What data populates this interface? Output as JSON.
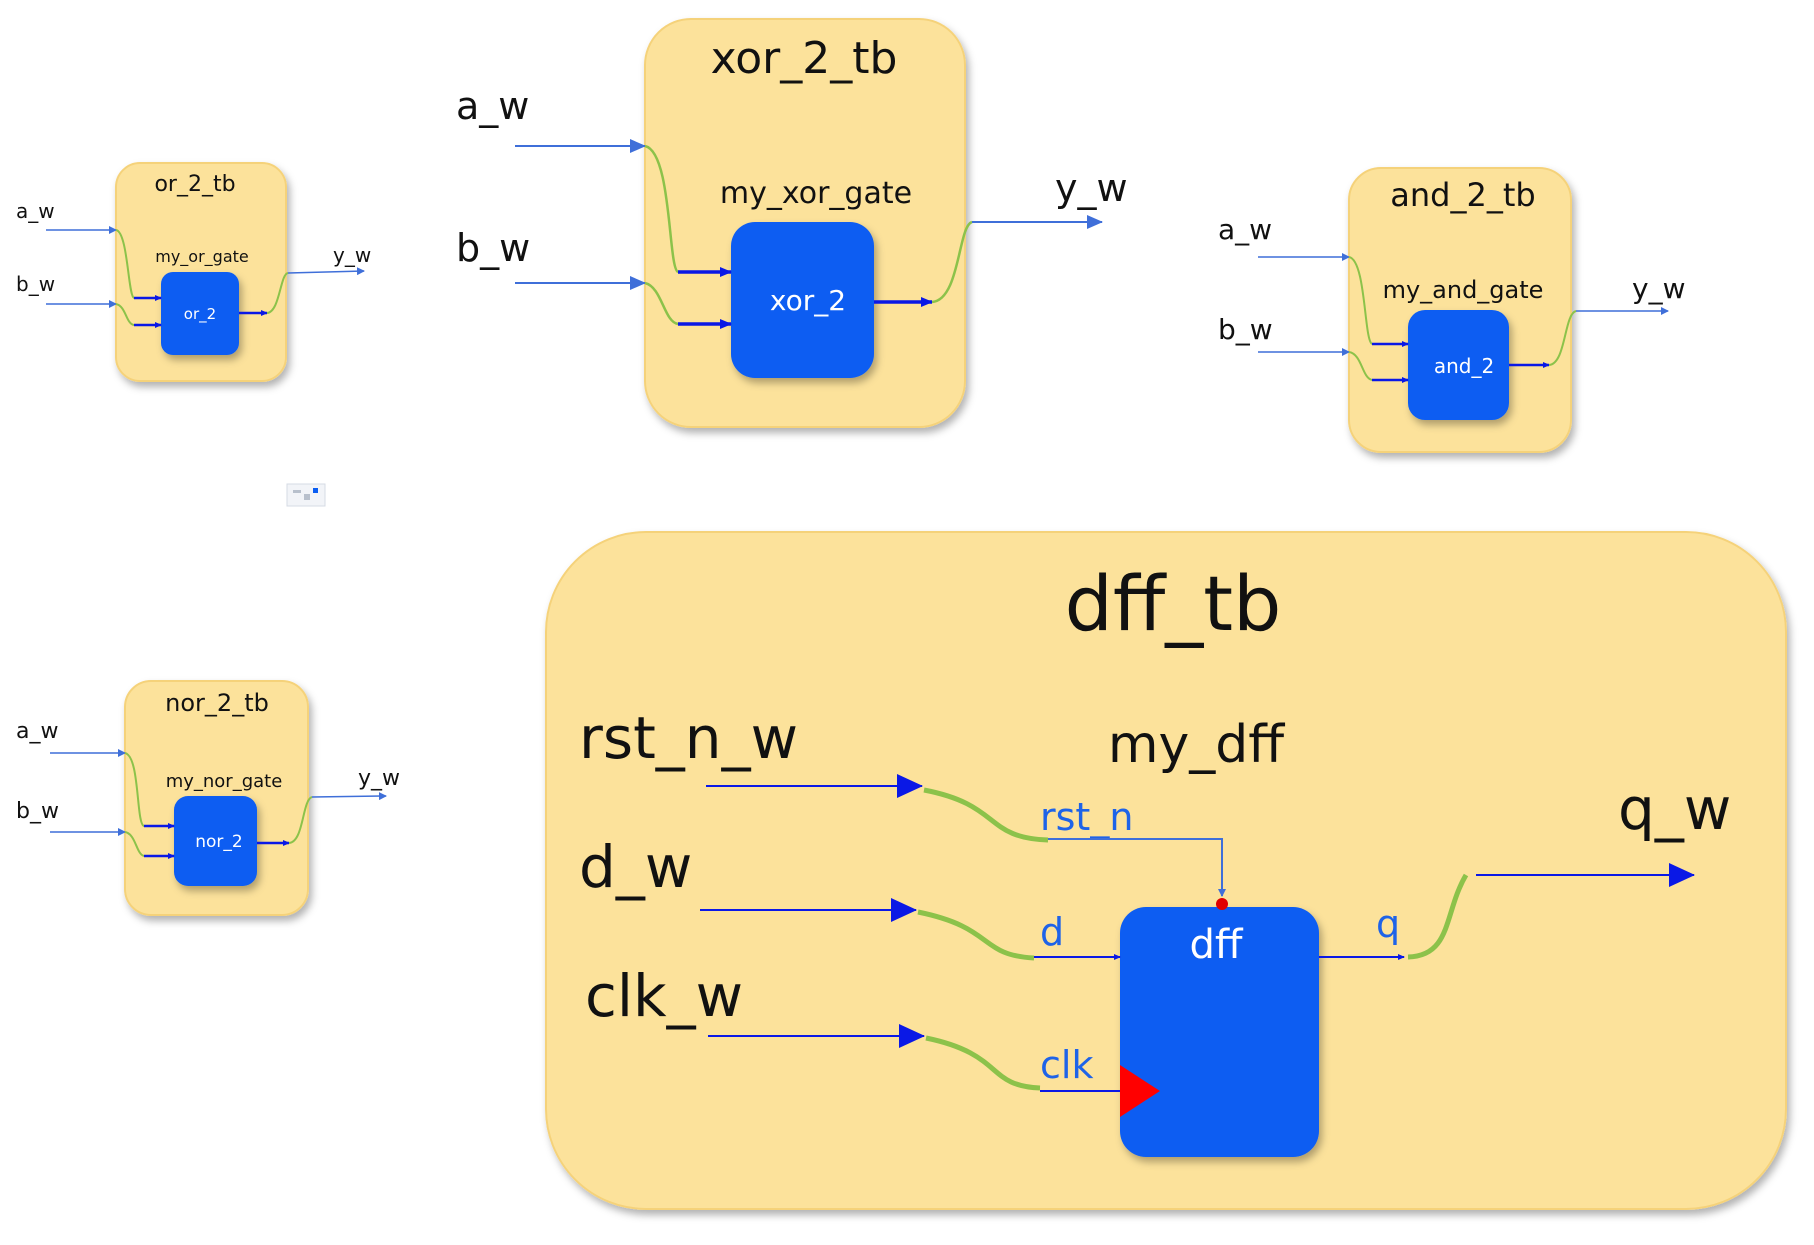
{
  "or_tb": {
    "title": "or_2_tb",
    "instance": "my_or_gate",
    "gate": "or_2",
    "in_a": "a_w",
    "in_b": "b_w",
    "out": "y_w"
  },
  "xor_tb": {
    "title": "xor_2_tb",
    "instance": "my_xor_gate",
    "gate": "xor_2",
    "in_a": "a_w",
    "in_b": "b_w",
    "out": "y_w"
  },
  "and_tb": {
    "title": "and_2_tb",
    "instance": "my_and_gate",
    "gate": "and_2",
    "in_a": "a_w",
    "in_b": "b_w",
    "out": "y_w"
  },
  "nor_tb": {
    "title": "nor_2_tb",
    "instance": "my_nor_gate",
    "gate": "nor_2",
    "in_a": "a_w",
    "in_b": "b_w",
    "out": "y_w"
  },
  "dff_tb": {
    "title": "dff_tb",
    "instance": "my_dff",
    "gate": "dff",
    "in_rst": "rst_n_w",
    "in_d": "d_w",
    "in_clk": "clk_w",
    "out": "q_w",
    "port_rst": "rst_n",
    "port_d": "d",
    "port_clk": "clk",
    "port_q": "q"
  },
  "colors": {
    "testbench": "#fce29b",
    "module": "#0a5df2",
    "wire": "#3f6fd9",
    "connector": "#8cc24a",
    "arrow": "#0a18e6",
    "clock": "#ff0000"
  }
}
